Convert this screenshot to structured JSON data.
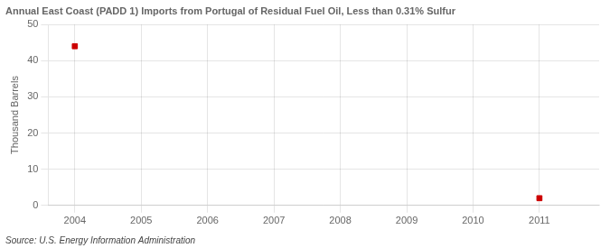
{
  "chart_data": {
    "type": "scatter",
    "title": "Annual East Coast (PADD 1) Imports from Portugal of Residual Fuel Oil, Less than 0.31% Sulfur",
    "ylabel": "Thousand Barrels",
    "source": "Source: U.S. Energy Information Administration",
    "x": [
      2004,
      2011
    ],
    "values": [
      44,
      2
    ],
    "color": "#cc0000",
    "marker": "square",
    "xlim": [
      2003.6,
      2011.9
    ],
    "xticks": [
      2004,
      2005,
      2006,
      2007,
      2008,
      2009,
      2010,
      2011
    ],
    "ylim": [
      0,
      50
    ],
    "yticks": [
      0,
      10,
      20,
      30,
      40,
      50
    ],
    "grid": true
  }
}
